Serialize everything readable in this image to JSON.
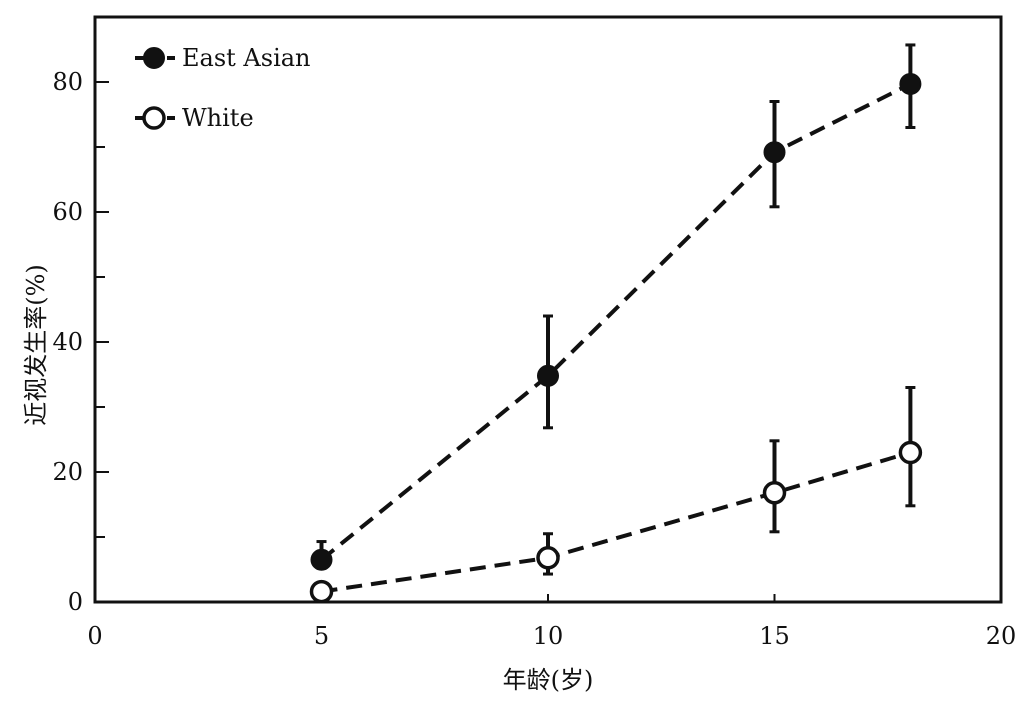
{
  "chart_data": {
    "type": "line",
    "xlabel": "年龄(岁)",
    "ylabel": "近视发生率(%)",
    "xlim": [
      0,
      20
    ],
    "ylim": [
      0,
      90
    ],
    "x_ticks": [
      0,
      5,
      10,
      15,
      20
    ],
    "y_ticks": [
      0,
      20,
      40,
      60,
      80
    ],
    "grid": false,
    "legend_position": "top-left",
    "series": [
      {
        "name": "East Asian",
        "marker": "filled-circle",
        "line_style": "dashed",
        "color": "#111111",
        "x": [
          5,
          10,
          15,
          18
        ],
        "y": [
          6.5,
          34.8,
          69.2,
          79.7
        ],
        "err_low": [
          5.2,
          26.8,
          60.8,
          73.0
        ],
        "err_high": [
          9.3,
          44.0,
          77.0,
          85.7
        ]
      },
      {
        "name": "White",
        "marker": "open-circle",
        "line_style": "dashed",
        "color": "#111111",
        "x": [
          5,
          10,
          15,
          18
        ],
        "y": [
          1.6,
          6.8,
          16.8,
          23.0
        ],
        "err_low": [
          0.8,
          4.3,
          10.8,
          14.8
        ],
        "err_high": [
          2.8,
          10.5,
          24.8,
          33.0
        ]
      }
    ]
  }
}
